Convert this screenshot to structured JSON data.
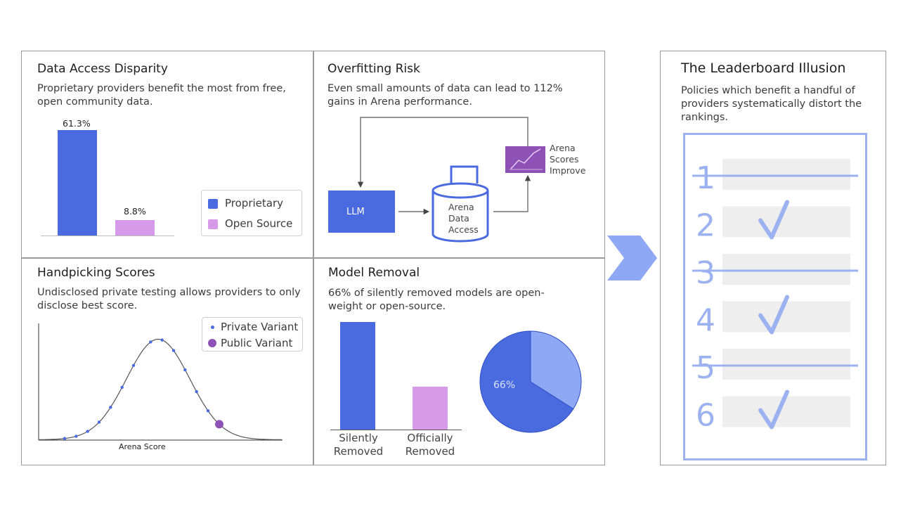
{
  "colors": {
    "proprietary": "#4a6ae0",
    "open_source": "#d79ae8",
    "accent_light": "#8fa8f5",
    "purple": "#8e51b6",
    "border": "#9a9a9a"
  },
  "panels": {
    "data_access": {
      "title": "Data Access Disparity",
      "subtitle": "Proprietary providers benefit the most from free, open community data.",
      "chart_data": {
        "type": "bar",
        "categories": [
          "Proprietary",
          "Open Source"
        ],
        "values": [
          61.3,
          8.8
        ],
        "value_labels": [
          "61.3%",
          "8.8%"
        ],
        "ylim": [
          0,
          61.3
        ],
        "legend_placement": "right"
      },
      "legend": [
        {
          "label": "Proprietary",
          "color": "#4a6ae0"
        },
        {
          "label": "Open Source",
          "color": "#d79ae8"
        }
      ]
    },
    "overfitting": {
      "title": "Overfitting Risk",
      "subtitle": "Even small amounts of data can lead to 112% gains in Arena performance.",
      "nodes": {
        "llm": "LLM",
        "arena_data": [
          "Arena",
          "Data",
          "Access"
        ],
        "arena_scores": [
          "Arena",
          "Scores",
          "Improve"
        ]
      },
      "icon": "trend-chart-icon"
    },
    "handpicking": {
      "title": "Handpicking Scores",
      "subtitle": "Undisclosed private testing allows providers to only disclose best score.",
      "xlabel": "Arena Score",
      "legend": [
        {
          "label": "Private Variant",
          "color": "#4a6ae0"
        },
        {
          "label": "Public Variant",
          "color": "#8e51b6"
        }
      ],
      "chart_data": {
        "type": "line",
        "curve": "bell",
        "private_variant_points": 13,
        "public_variant_points": 1
      }
    },
    "model_removal": {
      "title": "Model Removal",
      "subtitle": "66% of silently removed models are open-weight or open-source.",
      "chart_data": [
        {
          "type": "bar",
          "categories": [
            [
              "Silently",
              "Removed"
            ],
            [
              "Officially",
              "Removed"
            ]
          ],
          "values": [
            100,
            40
          ]
        },
        {
          "type": "pie",
          "slices": [
            {
              "label": "66%",
              "value": 66,
              "color": "#4a6ae0"
            },
            {
              "value": 34,
              "color": "#8fa8f5"
            }
          ]
        }
      ]
    }
  },
  "conclusion": {
    "title": "The Leaderboard Illusion",
    "subtitle": "Policies which benefit a handful of providers systematically distort the rankings.",
    "ranks": [
      {
        "n": "1",
        "status": "struck"
      },
      {
        "n": "2",
        "status": "checked"
      },
      {
        "n": "3",
        "status": "struck"
      },
      {
        "n": "4",
        "status": "checked"
      },
      {
        "n": "5",
        "status": "struck"
      },
      {
        "n": "6",
        "status": "checked"
      }
    ]
  }
}
